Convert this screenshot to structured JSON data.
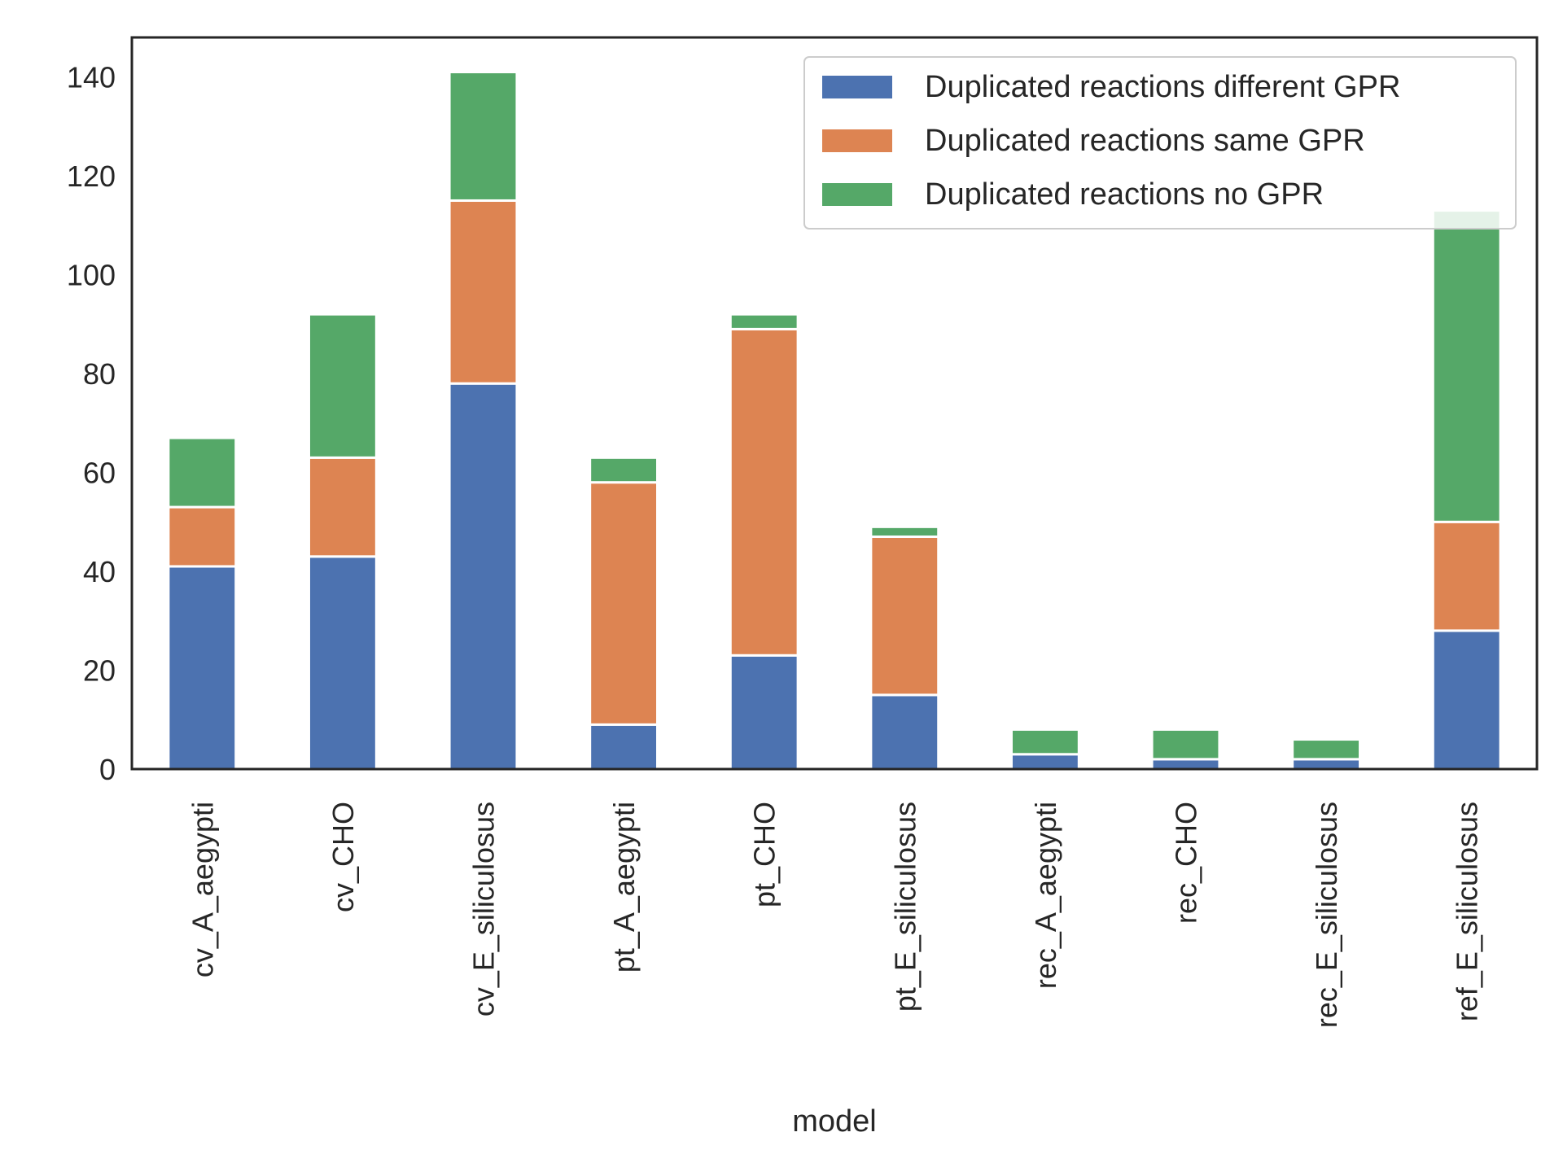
{
  "chart_data": {
    "type": "bar",
    "stacked": true,
    "title": "",
    "xlabel": "model",
    "ylabel": "",
    "ylim": [
      0,
      148
    ],
    "yticks": [
      0,
      20,
      40,
      60,
      80,
      100,
      120,
      140
    ],
    "grid": false,
    "legend_position": "top-right",
    "categories": [
      "cv_A_aegypti",
      "cv_CHO",
      "cv_E_siliculosus",
      "pt_A_aegypti",
      "pt_CHO",
      "pt_E_siliculosus",
      "rec_A_aegypti",
      "rec_CHO",
      "rec_E_siliculosus",
      "ref_E_siliculosus"
    ],
    "series": [
      {
        "name": "Duplicated reactions different GPR",
        "color": "#4c72b0",
        "values": [
          41,
          43,
          78,
          9,
          23,
          15,
          3,
          2,
          2,
          28
        ]
      },
      {
        "name": "Duplicated reactions same GPR",
        "color": "#dd8452",
        "values": [
          12,
          20,
          37,
          49,
          66,
          32,
          0,
          0,
          0,
          22
        ]
      },
      {
        "name": "Duplicated reactions no GPR",
        "color": "#55a868",
        "values": [
          14,
          29,
          26,
          5,
          3,
          2,
          5,
          6,
          4,
          63
        ]
      }
    ]
  }
}
